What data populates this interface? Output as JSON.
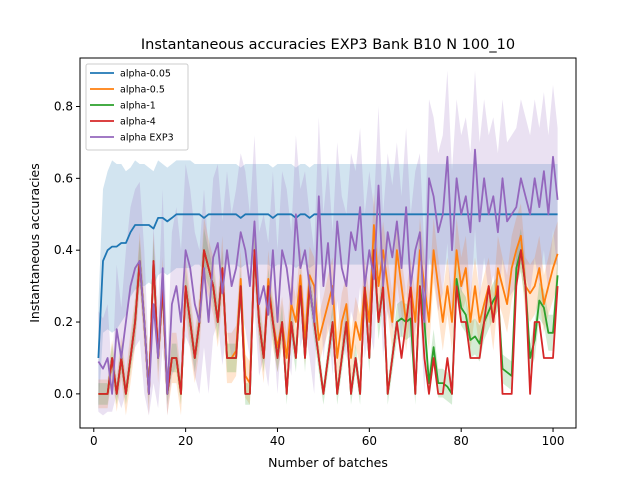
{
  "chart_data": {
    "type": "line",
    "title": "Instantaneous accuracies EXP3 Bank B10 N 100_10",
    "xlabel": "Number of batches",
    "ylabel": "Instantaneous accuracies",
    "xlim": [
      -3,
      105
    ],
    "ylim": [
      -0.095,
      0.935
    ],
    "xticks": [
      0,
      20,
      40,
      60,
      80,
      100
    ],
    "xtick_labels": [
      "0",
      "20",
      "40",
      "60",
      "80",
      "100"
    ],
    "yticks": [
      0.0,
      0.2,
      0.4,
      0.6,
      0.8
    ],
    "ytick_labels": [
      "0.0",
      "0.2",
      "0.4",
      "0.6",
      "0.8"
    ],
    "grid": false,
    "legend_position": "top-left",
    "x": [
      1,
      2,
      3,
      4,
      5,
      6,
      7,
      8,
      9,
      10,
      11,
      12,
      13,
      14,
      15,
      16,
      17,
      18,
      19,
      20,
      21,
      22,
      23,
      24,
      25,
      26,
      27,
      28,
      29,
      30,
      31,
      32,
      33,
      34,
      35,
      36,
      37,
      38,
      39,
      40,
      41,
      42,
      43,
      44,
      45,
      46,
      47,
      48,
      49,
      50,
      51,
      52,
      53,
      54,
      55,
      56,
      57,
      58,
      59,
      60,
      61,
      62,
      63,
      64,
      65,
      66,
      67,
      68,
      69,
      70,
      71,
      72,
      73,
      74,
      75,
      76,
      77,
      78,
      79,
      80,
      81,
      82,
      83,
      84,
      85,
      86,
      87,
      88,
      89,
      90,
      91,
      92,
      93,
      94,
      95,
      96,
      97,
      98,
      99,
      100,
      101
    ],
    "series": [
      {
        "name": "alpha-0.05",
        "color": "#1f77b4",
        "values": [
          0.1,
          0.37,
          0.4,
          0.41,
          0.41,
          0.42,
          0.42,
          0.45,
          0.47,
          0.47,
          0.47,
          0.47,
          0.46,
          0.49,
          0.49,
          0.48,
          0.49,
          0.5,
          0.5,
          0.5,
          0.5,
          0.5,
          0.5,
          0.49,
          0.5,
          0.5,
          0.5,
          0.5,
          0.5,
          0.5,
          0.5,
          0.49,
          0.5,
          0.5,
          0.5,
          0.5,
          0.5,
          0.5,
          0.49,
          0.5,
          0.5,
          0.5,
          0.5,
          0.49,
          0.5,
          0.5,
          0.49,
          0.5,
          0.5,
          0.5,
          0.5,
          0.5,
          0.5,
          0.5,
          0.5,
          0.5,
          0.5,
          0.5,
          0.5,
          0.5,
          0.5,
          0.5,
          0.5,
          0.5,
          0.5,
          0.5,
          0.5,
          0.5,
          0.5,
          0.5,
          0.5,
          0.5,
          0.5,
          0.5,
          0.5,
          0.5,
          0.5,
          0.5,
          0.5,
          0.5,
          0.5,
          0.5,
          0.5,
          0.5,
          0.5,
          0.5,
          0.5,
          0.5,
          0.5,
          0.5,
          0.5,
          0.5,
          0.5,
          0.5,
          0.5,
          0.5,
          0.5,
          0.5,
          0.5,
          0.5,
          0.5
        ],
        "band_half_width": [
          0.15,
          0.2,
          0.22,
          0.24,
          0.23,
          0.22,
          0.2,
          0.18,
          0.18,
          0.17,
          0.17,
          0.16,
          0.16,
          0.16,
          0.15,
          0.15,
          0.15,
          0.15,
          0.15,
          0.15,
          0.15,
          0.14,
          0.14,
          0.15,
          0.14,
          0.14,
          0.14,
          0.14,
          0.14,
          0.14,
          0.14,
          0.14,
          0.14,
          0.14,
          0.14,
          0.14,
          0.14,
          0.14,
          0.14,
          0.14,
          0.14,
          0.14,
          0.14,
          0.14,
          0.14,
          0.14,
          0.14,
          0.14,
          0.14,
          0.14,
          0.14,
          0.14,
          0.14,
          0.14,
          0.14,
          0.14,
          0.14,
          0.14,
          0.14,
          0.14,
          0.14,
          0.14,
          0.14,
          0.14,
          0.14,
          0.14,
          0.14,
          0.14,
          0.14,
          0.14,
          0.14,
          0.14,
          0.14,
          0.14,
          0.14,
          0.14,
          0.14,
          0.14,
          0.14,
          0.14,
          0.14,
          0.14,
          0.14,
          0.14,
          0.14,
          0.14,
          0.14,
          0.14,
          0.14,
          0.14,
          0.14,
          0.14,
          0.14,
          0.14,
          0.14,
          0.14,
          0.14,
          0.14,
          0.14,
          0.14,
          0.14
        ]
      },
      {
        "name": "alpha-0.5",
        "color": "#ff7f0e",
        "values": [
          0.0,
          0.0,
          0.0,
          0.1,
          0.0,
          0.1,
          0.0,
          0.1,
          0.2,
          0.37,
          0.2,
          0.0,
          0.37,
          0.1,
          0.3,
          0.0,
          0.1,
          0.1,
          0.0,
          0.3,
          0.2,
          0.1,
          0.2,
          0.4,
          0.35,
          0.3,
          0.2,
          0.35,
          0.1,
          0.1,
          0.12,
          0.32,
          0.05,
          0.03,
          0.4,
          0.2,
          0.1,
          0.32,
          0.2,
          0.13,
          0.2,
          0.1,
          0.25,
          0.2,
          0.33,
          0.15,
          0.33,
          0.3,
          0.15,
          0.2,
          0.25,
          0.3,
          0.1,
          0.2,
          0.25,
          0.1,
          0.2,
          0.15,
          0.3,
          0.2,
          0.47,
          0.3,
          0.4,
          0.3,
          0.2,
          0.4,
          0.3,
          0.2,
          0.3,
          0.2,
          0.4,
          0.3,
          0.2,
          0.4,
          0.3,
          0.2,
          0.3,
          0.2,
          0.4,
          0.3,
          0.35,
          0.2,
          0.3,
          0.2,
          0.25,
          0.3,
          0.2,
          0.35,
          0.3,
          0.25,
          0.35,
          0.4,
          0.44,
          0.3,
          0.28,
          0.3,
          0.35,
          0.25,
          0.3,
          0.35,
          0.39
        ],
        "band_half_width": [
          0.04,
          0.04,
          0.04,
          0.05,
          0.05,
          0.06,
          0.06,
          0.07,
          0.07,
          0.08,
          0.07,
          0.06,
          0.08,
          0.07,
          0.08,
          0.06,
          0.07,
          0.07,
          0.06,
          0.08,
          0.08,
          0.07,
          0.08,
          0.09,
          0.08,
          0.08,
          0.07,
          0.09,
          0.07,
          0.07,
          0.07,
          0.08,
          0.06,
          0.06,
          0.09,
          0.07,
          0.07,
          0.08,
          0.07,
          0.07,
          0.07,
          0.07,
          0.08,
          0.07,
          0.08,
          0.07,
          0.08,
          0.08,
          0.07,
          0.07,
          0.08,
          0.08,
          0.07,
          0.08,
          0.08,
          0.07,
          0.07,
          0.07,
          0.08,
          0.08,
          0.09,
          0.08,
          0.08,
          0.08,
          0.08,
          0.09,
          0.08,
          0.08,
          0.08,
          0.08,
          0.09,
          0.08,
          0.08,
          0.09,
          0.08,
          0.08,
          0.08,
          0.08,
          0.09,
          0.08,
          0.09,
          0.08,
          0.08,
          0.08,
          0.08,
          0.08,
          0.08,
          0.09,
          0.08,
          0.08,
          0.09,
          0.09,
          0.09,
          0.08,
          0.08,
          0.08,
          0.09,
          0.08,
          0.08,
          0.09,
          0.09
        ]
      },
      {
        "name": "alpha-1",
        "color": "#2ca02c",
        "values": [
          0.0,
          0.0,
          0.0,
          0.1,
          0.0,
          0.1,
          0.0,
          0.1,
          0.2,
          0.37,
          0.2,
          0.0,
          0.37,
          0.1,
          0.3,
          0.0,
          0.1,
          0.1,
          0.0,
          0.3,
          0.2,
          0.1,
          0.2,
          0.4,
          0.35,
          0.3,
          0.2,
          0.35,
          0.1,
          0.1,
          0.1,
          0.3,
          0.0,
          0.0,
          0.4,
          0.2,
          0.1,
          0.3,
          0.2,
          0.1,
          0.2,
          0.0,
          0.2,
          0.1,
          0.3,
          0.1,
          0.3,
          0.2,
          0.1,
          0.0,
          0.1,
          0.2,
          0.0,
          0.1,
          0.2,
          0.0,
          0.1,
          0.0,
          0.3,
          0.1,
          0.4,
          0.2,
          0.3,
          0.0,
          0.1,
          0.2,
          0.21,
          0.2,
          0.21,
          0.0,
          0.3,
          0.2,
          0.03,
          0.13,
          0.03,
          0.03,
          0.02,
          0.0,
          0.32,
          0.24,
          0.22,
          0.15,
          0.16,
          0.14,
          0.2,
          0.23,
          0.26,
          0.28,
          0.07,
          0.06,
          0.05,
          0.35,
          0.4,
          0.3,
          0.1,
          0.15,
          0.26,
          0.24,
          0.17,
          0.17,
          0.33
        ],
        "band_half_width": [
          0.03,
          0.03,
          0.03,
          0.04,
          0.03,
          0.04,
          0.03,
          0.04,
          0.05,
          0.06,
          0.05,
          0.03,
          0.06,
          0.04,
          0.05,
          0.03,
          0.04,
          0.04,
          0.03,
          0.05,
          0.05,
          0.04,
          0.05,
          0.06,
          0.05,
          0.05,
          0.05,
          0.05,
          0.04,
          0.04,
          0.04,
          0.05,
          0.03,
          0.03,
          0.06,
          0.05,
          0.04,
          0.05,
          0.05,
          0.04,
          0.05,
          0.03,
          0.05,
          0.04,
          0.05,
          0.04,
          0.05,
          0.05,
          0.04,
          0.03,
          0.04,
          0.05,
          0.03,
          0.04,
          0.05,
          0.03,
          0.04,
          0.03,
          0.05,
          0.04,
          0.06,
          0.05,
          0.05,
          0.03,
          0.04,
          0.05,
          0.05,
          0.05,
          0.05,
          0.03,
          0.05,
          0.05,
          0.04,
          0.05,
          0.04,
          0.04,
          0.04,
          0.03,
          0.05,
          0.05,
          0.05,
          0.05,
          0.05,
          0.05,
          0.05,
          0.05,
          0.05,
          0.05,
          0.04,
          0.04,
          0.04,
          0.05,
          0.06,
          0.05,
          0.04,
          0.05,
          0.05,
          0.05,
          0.05,
          0.05,
          0.05
        ]
      },
      {
        "name": "alpha-4",
        "color": "#d62728",
        "values": [
          0.0,
          0.0,
          0.0,
          0.1,
          0.0,
          0.1,
          0.0,
          0.1,
          0.2,
          0.37,
          0.2,
          0.0,
          0.37,
          0.1,
          0.3,
          0.0,
          0.1,
          0.1,
          0.0,
          0.3,
          0.2,
          0.1,
          0.2,
          0.4,
          0.35,
          0.3,
          0.2,
          0.35,
          0.1,
          0.1,
          0.1,
          0.3,
          0.0,
          0.0,
          0.4,
          0.2,
          0.1,
          0.3,
          0.2,
          0.1,
          0.2,
          0.0,
          0.2,
          0.1,
          0.3,
          0.1,
          0.3,
          0.2,
          0.1,
          0.0,
          0.1,
          0.2,
          0.0,
          0.1,
          0.2,
          0.0,
          0.1,
          0.0,
          0.3,
          0.1,
          0.4,
          0.2,
          0.3,
          0.0,
          0.1,
          0.2,
          0.1,
          0.2,
          0.3,
          0.0,
          0.3,
          0.1,
          0.0,
          0.1,
          0.0,
          0.0,
          0.1,
          0.0,
          0.3,
          0.2,
          0.2,
          0.1,
          0.1,
          0.1,
          0.2,
          0.3,
          0.2,
          0.3,
          0.0,
          0.0,
          0.0,
          0.3,
          0.4,
          0.3,
          0.0,
          0.2,
          0.2,
          0.1,
          0.1,
          0.1,
          0.3
        ],
        "band_half_width": []
      },
      {
        "name": "alpha EXP3",
        "color": "#9467bd",
        "values": [
          0.09,
          0.07,
          0.1,
          0.0,
          0.18,
          0.1,
          0.2,
          0.3,
          0.35,
          0.37,
          0.2,
          0.0,
          0.25,
          0.1,
          0.35,
          0.0,
          0.25,
          0.3,
          0.2,
          0.4,
          0.35,
          0.25,
          0.2,
          0.35,
          0.2,
          0.38,
          0.42,
          0.28,
          0.4,
          0.3,
          0.35,
          0.45,
          0.4,
          0.3,
          0.48,
          0.25,
          0.3,
          0.22,
          0.4,
          0.2,
          0.4,
          0.35,
          0.25,
          0.5,
          0.35,
          0.4,
          0.3,
          0.2,
          0.55,
          0.3,
          0.42,
          0.25,
          0.48,
          0.35,
          0.3,
          0.45,
          0.4,
          0.52,
          0.3,
          0.4,
          0.32,
          0.58,
          0.3,
          0.45,
          0.38,
          0.48,
          0.35,
          0.52,
          0.3,
          0.4,
          0.45,
          0.2,
          0.6,
          0.55,
          0.45,
          0.5,
          0.66,
          0.4,
          0.6,
          0.5,
          0.55,
          0.45,
          0.68,
          0.48,
          0.6,
          0.5,
          0.55,
          0.45,
          0.6,
          0.48,
          0.5,
          0.52,
          0.6,
          0.55,
          0.5,
          0.6,
          0.52,
          0.62,
          0.5,
          0.66,
          0.54
        ],
        "band_half_width": [
          0.14,
          0.14,
          0.15,
          0.05,
          0.18,
          0.14,
          0.2,
          0.22,
          0.22,
          0.22,
          0.2,
          0.1,
          0.22,
          0.14,
          0.22,
          0.1,
          0.2,
          0.22,
          0.2,
          0.24,
          0.22,
          0.2,
          0.2,
          0.22,
          0.2,
          0.22,
          0.22,
          0.2,
          0.22,
          0.2,
          0.22,
          0.22,
          0.22,
          0.2,
          0.24,
          0.2,
          0.2,
          0.2,
          0.22,
          0.2,
          0.22,
          0.22,
          0.2,
          0.22,
          0.22,
          0.22,
          0.2,
          0.2,
          0.22,
          0.2,
          0.22,
          0.2,
          0.22,
          0.2,
          0.2,
          0.22,
          0.22,
          0.22,
          0.2,
          0.22,
          0.2,
          0.22,
          0.2,
          0.22,
          0.2,
          0.22,
          0.2,
          0.22,
          0.2,
          0.22,
          0.22,
          0.2,
          0.22,
          0.22,
          0.22,
          0.22,
          0.24,
          0.22,
          0.22,
          0.22,
          0.22,
          0.22,
          0.22,
          0.22,
          0.22,
          0.22,
          0.22,
          0.22,
          0.22,
          0.22,
          0.22,
          0.22,
          0.22,
          0.22,
          0.22,
          0.22,
          0.22,
          0.22,
          0.22,
          0.2,
          0.2
        ]
      }
    ]
  }
}
